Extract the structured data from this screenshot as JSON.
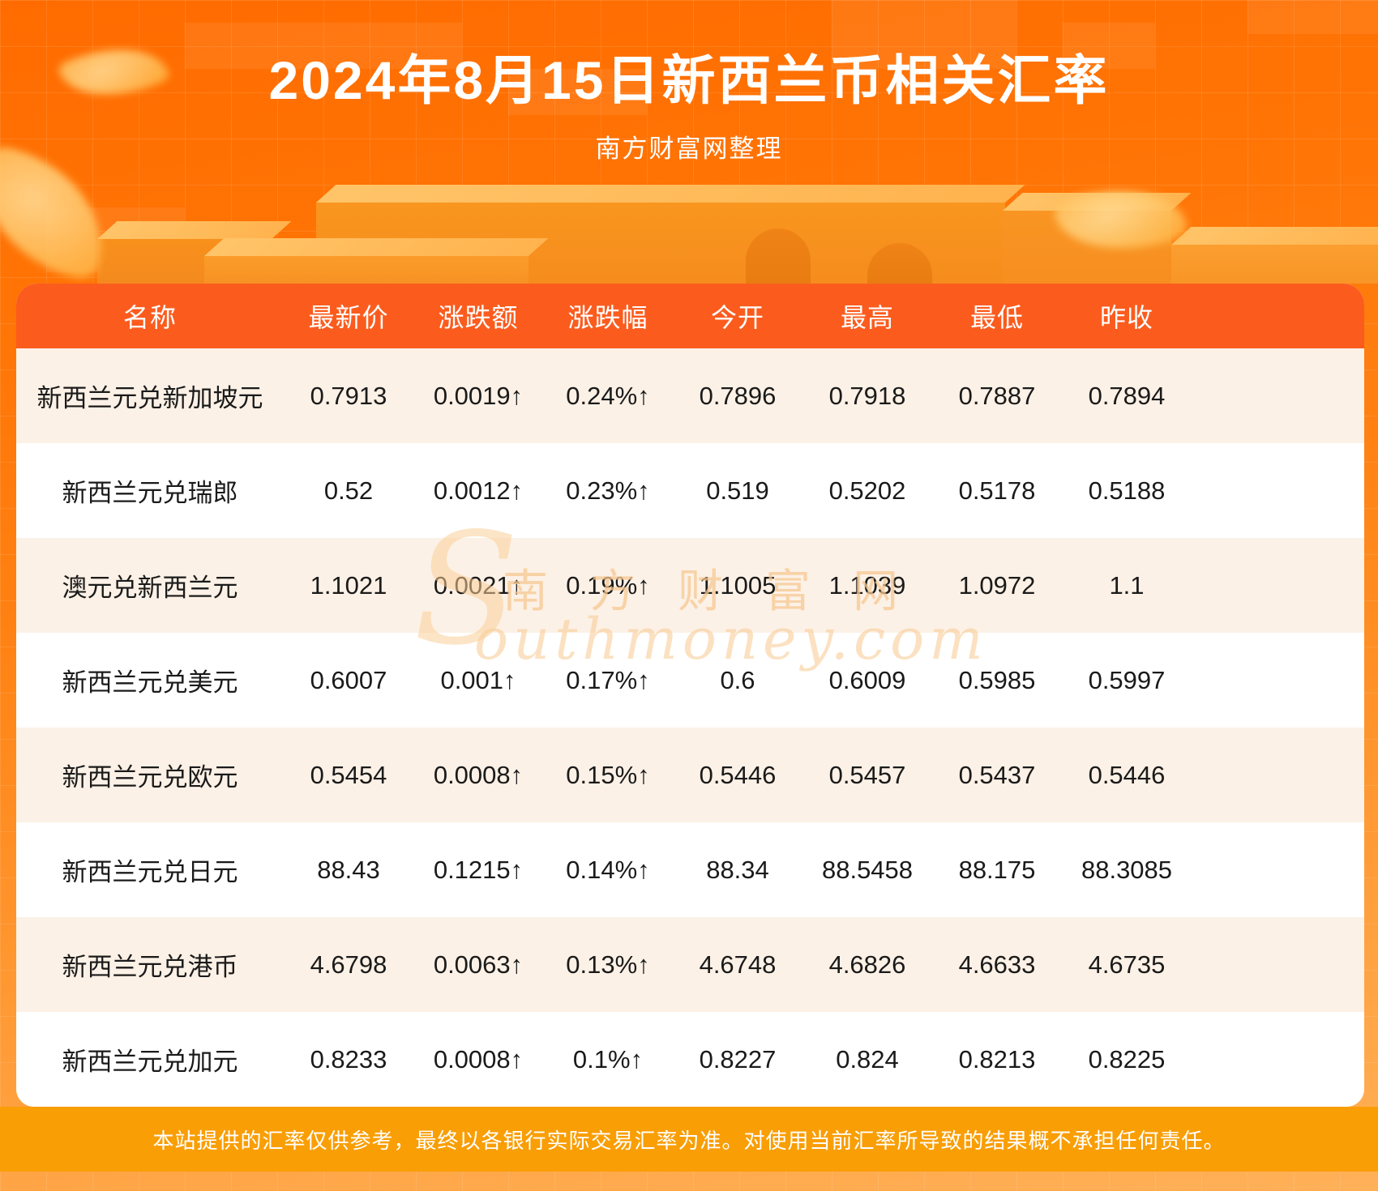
{
  "page": {
    "title": "2024年8月15日新西兰币相关汇率",
    "subtitle": "南方财富网整理",
    "footer": "本站提供的汇率仅供参考，最终以各银行实际交易汇率为准。对使用当前汇率所导致的结果概不承担任何责任。",
    "watermark_en_initial": "S",
    "watermark_cn": "南方财富网",
    "watermark_en_rest": "outhmoney.com"
  },
  "colors": {
    "header_bg": "#fb5c1e",
    "row_alt_bg": "#fcf1e6",
    "value_red": "#ee1111",
    "footer_bg": "#f99e05",
    "page_orange_top": "#ff6b00",
    "page_orange_bottom": "#ffb159"
  },
  "chart_data": {
    "type": "table",
    "title": "2024年8月15日新西兰币相关汇率",
    "subtitle": "南方财富网整理",
    "columns": [
      "名称",
      "最新价",
      "涨跌额",
      "涨跌幅",
      "今开",
      "最高",
      "最低",
      "昨收"
    ],
    "column_keys": [
      "name",
      "last",
      "change",
      "pct",
      "open",
      "high",
      "low",
      "prev"
    ],
    "rows": [
      [
        "新西兰元兑新加坡元",
        "0.7913",
        "0.0019↑",
        "0.24%↑",
        "0.7896",
        "0.7918",
        "0.7887",
        "0.7894"
      ],
      [
        "新西兰元兑瑞郎",
        "0.52",
        "0.0012↑",
        "0.23%↑",
        "0.519",
        "0.5202",
        "0.5178",
        "0.5188"
      ],
      [
        "澳元兑新西兰元",
        "1.1021",
        "0.0021↑",
        "0.19%↑",
        "1.1005",
        "1.1039",
        "1.0972",
        "1.1"
      ],
      [
        "新西兰元兑美元",
        "0.6007",
        "0.001↑",
        "0.17%↑",
        "0.6",
        "0.6009",
        "0.5985",
        "0.5997"
      ],
      [
        "新西兰元兑欧元",
        "0.5454",
        "0.0008↑",
        "0.15%↑",
        "0.5446",
        "0.5457",
        "0.5437",
        "0.5446"
      ],
      [
        "新西兰元兑日元",
        "88.43",
        "0.1215↑",
        "0.14%↑",
        "88.34",
        "88.5458",
        "88.175",
        "88.3085"
      ],
      [
        "新西兰元兑港币",
        "4.6798",
        "0.0063↑",
        "0.13%↑",
        "4.6748",
        "4.6826",
        "4.6633",
        "4.6735"
      ],
      [
        "新西兰元兑加元",
        "0.8233",
        "0.0008↑",
        "0.1%↑",
        "0.8227",
        "0.824",
        "0.8213",
        "0.8225"
      ]
    ],
    "red_columns": [
      1,
      2,
      3
    ],
    "layout": {
      "legend": false,
      "grid": false,
      "striped": true
    }
  }
}
